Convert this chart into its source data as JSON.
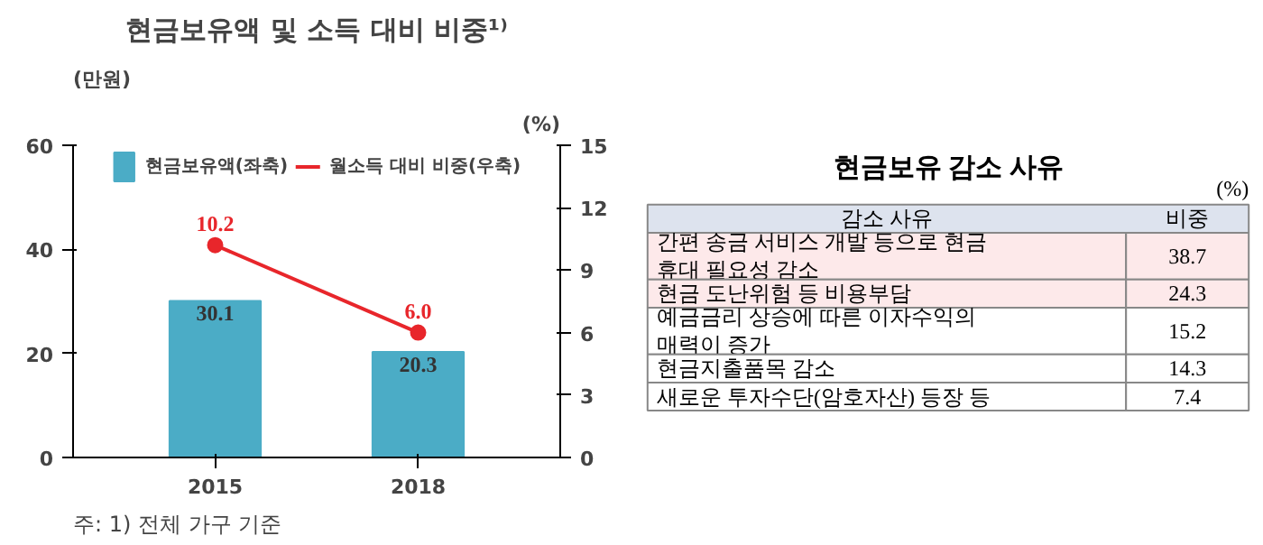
{
  "chart_data": [
    {
      "type": "bar",
      "title": "현금보유액 및 소득 대비 비중¹⁾",
      "ylabel": "(만원)",
      "y2label": "(%)",
      "categories": [
        "2015",
        "2018"
      ],
      "series": [
        {
          "name": "현금보유액(좌축)",
          "color": "#4bacc6",
          "values": [
            30.1,
            20.3
          ]
        },
        {
          "name": "월소득 대비 비중(우축)",
          "type": "line",
          "axis": "y2",
          "color": "#e8262b",
          "values": [
            10.2,
            6.0
          ],
          "value_labels": [
            "10.2",
            "6.0"
          ],
          "marker": "circle"
        }
      ],
      "ylim": [
        0,
        60
      ],
      "yticks": [
        0,
        20,
        40,
        60
      ],
      "y2lim": [
        0,
        15
      ],
      "y2ticks": [
        0,
        3,
        6,
        9,
        12,
        15
      ],
      "data_labels": true,
      "legend": "top",
      "grid": false,
      "annotations": [
        "주: 1) 전체 가구 기준"
      ]
    },
    {
      "type": "other",
      "title": "현금보유 감소 사유",
      "subtitle": "(%)",
      "xlabel": "감소 사유",
      "ylabel": "비중",
      "categories": [
        "간편 송금 서비스 개발 등으로 현금 휴대 필요성 감소",
        "현금 도난위험 등 비용부담",
        "예금금리 상승에 따른 이자수익의 매력이 증가",
        "현금지출품목 감소",
        "새로운 투자수단(암호자산) 등장 등"
      ],
      "values": [
        38.7,
        24.3,
        15.2,
        14.3,
        7.4
      ],
      "colors": [
        "#fde9ea",
        "#fde9ea",
        "#ffffff",
        "#ffffff",
        "#ffffff"
      ],
      "data_labels": true
    }
  ]
}
